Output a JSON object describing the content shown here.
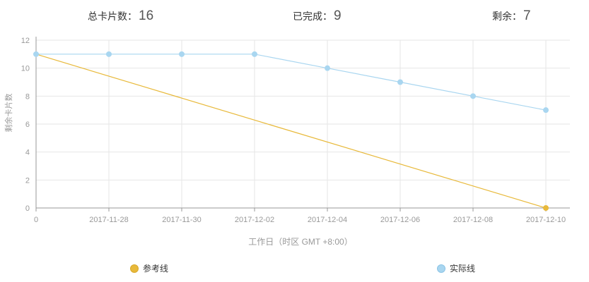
{
  "stats": {
    "total": {
      "label": "总卡片数：",
      "value": "16"
    },
    "done": {
      "label": "已完成：",
      "value": "9"
    },
    "remaining": {
      "label": "剩余：",
      "value": "7"
    }
  },
  "colors": {
    "reference": "#e8b93a",
    "actual": "#a9d6f0",
    "grid": "#e6e6e6",
    "axis": "#999999",
    "tick_text": "#999999"
  },
  "chart_data": {
    "type": "line",
    "xlabel": "工作日（时区 GMT +8:00）",
    "ylabel": "剩余卡片数",
    "ylim": [
      0,
      12
    ],
    "yticks": [
      0,
      2,
      4,
      6,
      8,
      10,
      12
    ],
    "x_tick_labels": [
      "0",
      "2017-11-28",
      "2017-11-30",
      "2017-12-02",
      "2017-12-04",
      "2017-12-06",
      "2017-12-08",
      "2017-12-10"
    ],
    "grid": true,
    "legend_position": "bottom",
    "series": [
      {
        "name": "参考线",
        "color": "#e8b93a",
        "points": [
          [
            0,
            11
          ],
          [
            7,
            0
          ]
        ],
        "marker_indices": [
          1
        ]
      },
      {
        "name": "实际线",
        "color": "#a9d6f0",
        "points": [
          [
            0,
            11
          ],
          [
            1,
            11
          ],
          [
            2,
            11
          ],
          [
            3,
            11
          ],
          [
            4,
            10
          ],
          [
            5,
            9
          ],
          [
            6,
            8
          ],
          [
            7,
            7
          ]
        ],
        "marker_indices": [
          0,
          1,
          2,
          3,
          4,
          5,
          6,
          7
        ]
      }
    ]
  }
}
